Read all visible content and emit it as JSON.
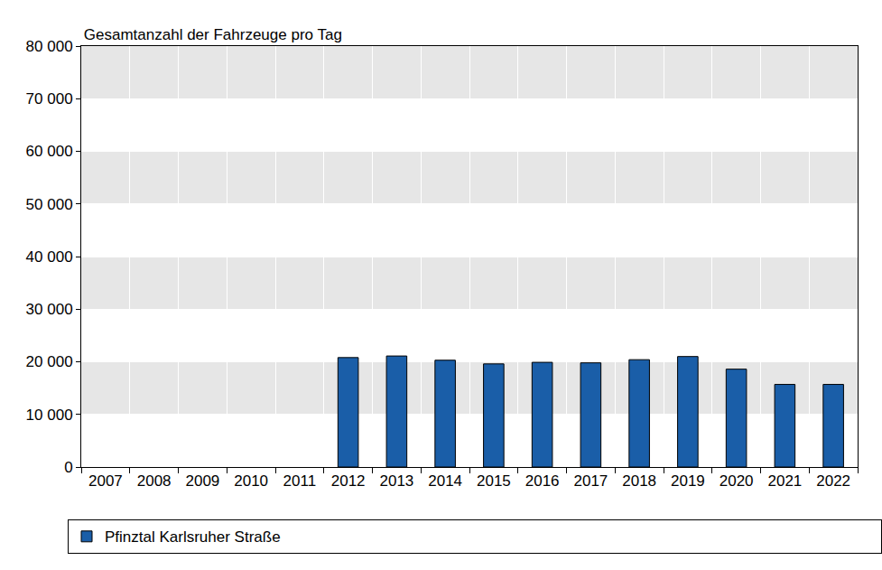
{
  "chart_data": {
    "type": "bar",
    "title": "Gesamtanzahl der Fahrzeuge pro Tag",
    "categories": [
      "2007",
      "2008",
      "2009",
      "2010",
      "2011",
      "2012",
      "2013",
      "2014",
      "2015",
      "2016",
      "2017",
      "2018",
      "2019",
      "2020",
      "2021",
      "2022"
    ],
    "series": [
      {
        "name": "Pfinztal Karlsruher Straße",
        "color": "#1a5ea8",
        "values": [
          null,
          null,
          null,
          null,
          null,
          20800,
          21100,
          20300,
          19600,
          19900,
          19800,
          20400,
          21000,
          18600,
          15700,
          15700
        ]
      }
    ],
    "ylim": [
      0,
      80000
    ],
    "yticks": [
      0,
      {
        "value": 10000,
        "label": "10 000"
      },
      {
        "value": 20000,
        "label": "20 000"
      },
      {
        "value": 30000,
        "label": "30 000"
      },
      {
        "value": 40000,
        "label": "40 000"
      },
      {
        "value": 50000,
        "label": "50 000"
      },
      {
        "value": 60000,
        "label": "60 000"
      },
      {
        "value": 70000,
        "label": "70 000"
      },
      {
        "value": 80000,
        "label": "80 000"
      }
    ],
    "grid": true,
    "legend": "bottom"
  }
}
